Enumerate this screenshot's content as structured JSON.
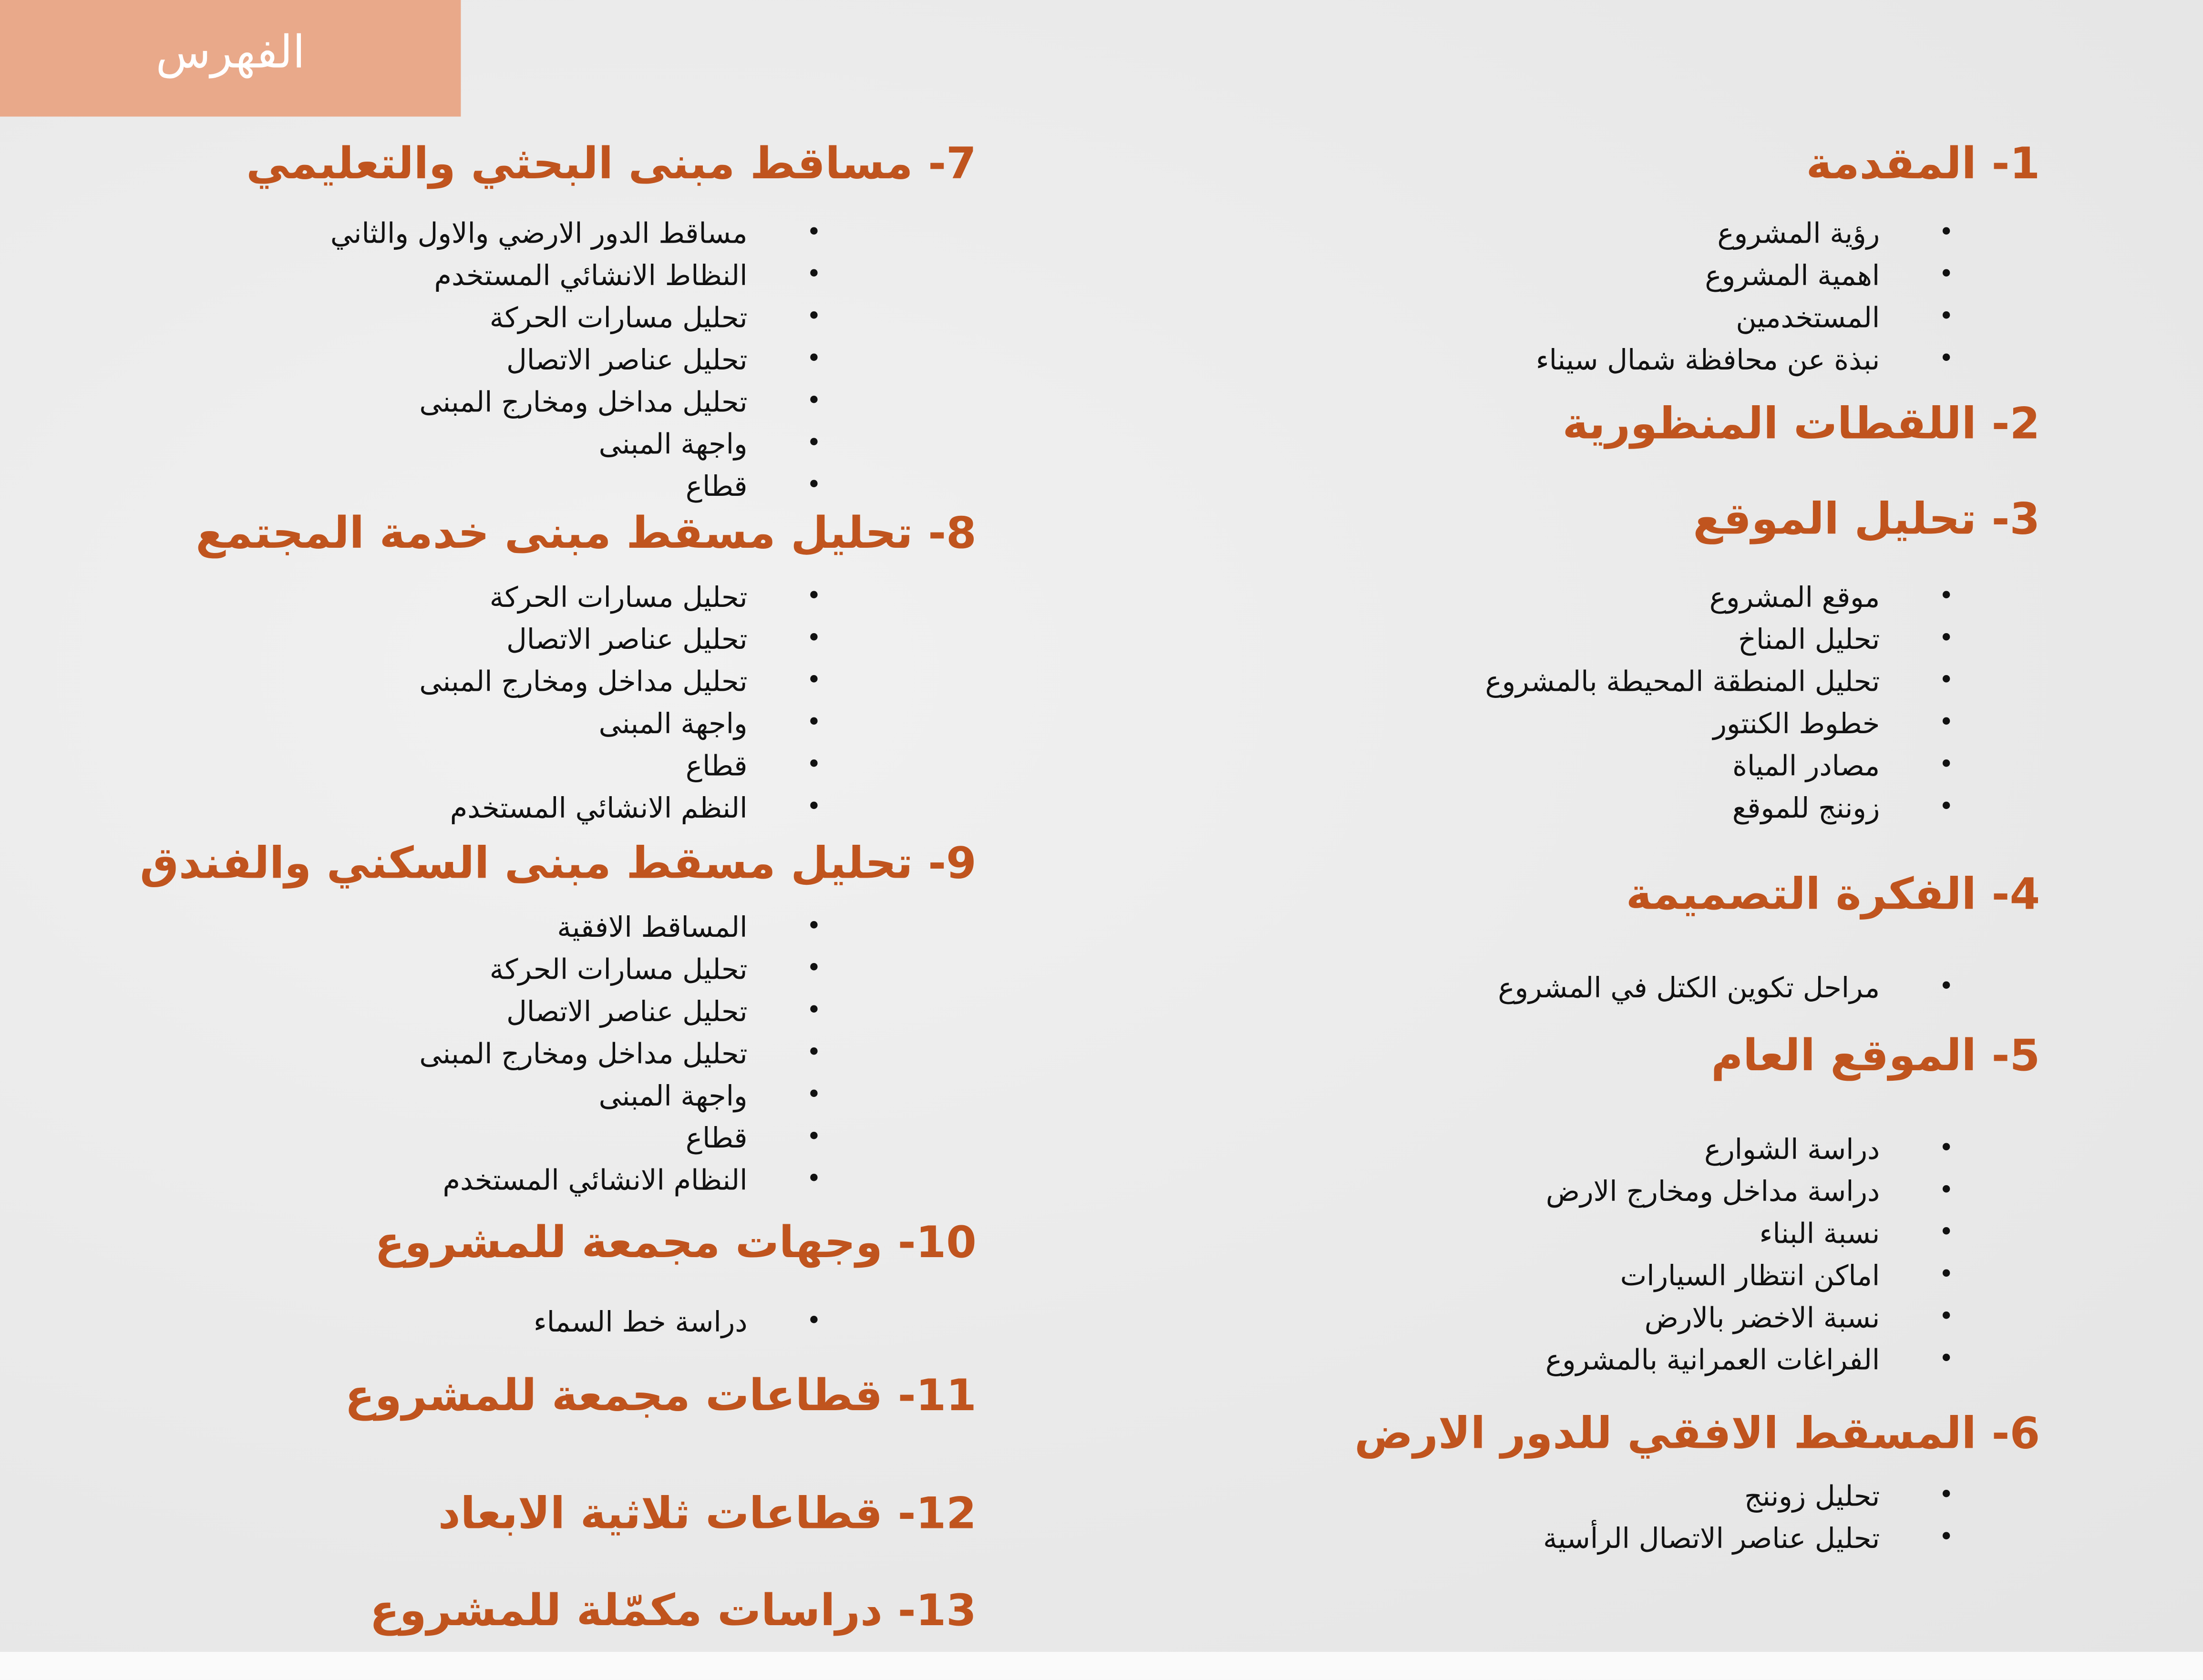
{
  "title": "الفهرس",
  "colors": {
    "heading": "#C0541E",
    "title_box": "#E9A98A",
    "text": "#111111",
    "bullet_icon": "bullet-dot"
  },
  "sections": [
    {
      "heading": "1- المقدمة",
      "items": [
        "رؤية المشروع",
        "اهمية المشروع",
        "المستخدمين",
        "نبذة عن محافظة شمال سيناء"
      ]
    },
    {
      "heading": "2- اللقطات المنظورية",
      "items": []
    },
    {
      "heading": "3- تحليل الموقع",
      "items": [
        "موقع المشروع",
        "تحليل المناخ",
        "تحليل المنطقة المحيطة بالمشروع",
        "خطوط الكنتور",
        "مصادر المياة",
        "زوننج للموقع"
      ]
    },
    {
      "heading": "4- الفكرة التصميمة",
      "items": [
        "مراحل تكوين الكتل في المشروع"
      ]
    },
    {
      "heading": "5- الموقع العام",
      "items": [
        "دراسة الشوارع",
        "دراسة مداخل ومخارج الارض",
        "نسبة البناء",
        "اماكن انتظار السيارات",
        "نسبة الاخضر بالارض",
        "الفراغات العمرانية بالمشروع"
      ]
    },
    {
      "heading": "6- المسقط الافقي للدور الارض",
      "items": [
        "تحليل زوننج",
        "تحليل عناصر الاتصال الرأسية"
      ]
    },
    {
      "heading": "7- مساقط مبنى البحثي والتعليمي",
      "items": [
        "مساقط الدور الارضي والاول والثاني",
        "النظاط الانشائي المستخدم",
        "تحليل مسارات الحركة",
        "تحليل عناصر الاتصال",
        "تحليل مداخل ومخارج المبنى",
        "واجهة المبنى",
        "قطاع"
      ]
    },
    {
      "heading": "8- تحليل مسقط مبنى خدمة المجتمع",
      "items": [
        "تحليل مسارات الحركة",
        "تحليل عناصر الاتصال",
        "تحليل مداخل ومخارج المبنى",
        "واجهة المبنى",
        "قطاع",
        "النظم الانشائي المستخدم"
      ]
    },
    {
      "heading": "9- تحليل مسقط مبنى السكني  والفندق",
      "items": [
        "المساقط الافقية",
        "تحليل مسارات الحركة",
        "تحليل عناصر الاتصال",
        "تحليل مداخل ومخارج المبنى",
        "واجهة المبنى",
        "قطاع",
        "النظام الانشائي المستخدم"
      ]
    },
    {
      "heading": "10- وجهات مجمعة للمشروع",
      "items": [
        "دراسة خط السماء"
      ]
    },
    {
      "heading": "11- قطاعات مجمعة للمشروع",
      "items": []
    },
    {
      "heading": "12- قطاعات ثلاثية الابعاد",
      "items": []
    },
    {
      "heading": "13- دراسات مكمّلة للمشروع",
      "items": []
    }
  ]
}
